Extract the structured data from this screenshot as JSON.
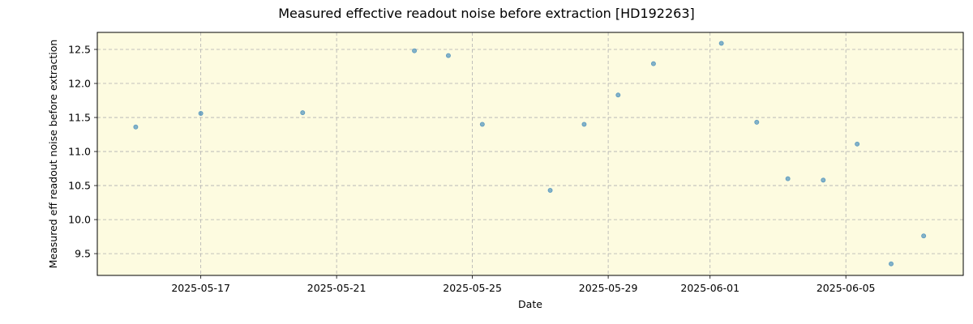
{
  "chart_data": {
    "type": "scatter",
    "title": "Measured effective readout noise before extraction [HD192263]",
    "xlabel": "Date",
    "ylabel": "Measured eff readout noise before extraction",
    "x_type": "date",
    "xlim": [
      "2025-05-13T22:50",
      "2025-06-08T11:00"
    ],
    "ylim": [
      9.18,
      12.75
    ],
    "x_ticks": [
      "2025-05-17",
      "2025-05-21",
      "2025-05-25",
      "2025-05-29",
      "2025-06-01",
      "2025-06-05"
    ],
    "y_ticks": [
      9.5,
      10.0,
      10.5,
      11.0,
      11.5,
      12.0,
      12.5
    ],
    "y_tick_labels": [
      "9.5",
      "10.0",
      "10.5",
      "11.0",
      "11.5",
      "12.0",
      "12.5"
    ],
    "grid": true,
    "colors": {
      "plot_background": "#fdfbe0",
      "marker": "#1f77b4"
    },
    "series": [
      {
        "points": [
          {
            "x": "2025-05-15T02:00",
            "y": 11.36
          },
          {
            "x": "2025-05-17T00:00",
            "y": 11.56
          },
          {
            "x": "2025-05-20T00:00",
            "y": 11.57
          },
          {
            "x": "2025-05-23T07:00",
            "y": 12.48
          },
          {
            "x": "2025-05-24T07:00",
            "y": 12.41
          },
          {
            "x": "2025-05-25T07:00",
            "y": 11.4
          },
          {
            "x": "2025-05-27T07:00",
            "y": 10.43
          },
          {
            "x": "2025-05-28T07:00",
            "y": 11.4
          },
          {
            "x": "2025-05-29T07:00",
            "y": 11.83
          },
          {
            "x": "2025-05-30T08:00",
            "y": 12.29
          },
          {
            "x": "2025-06-01T08:00",
            "y": 12.59
          },
          {
            "x": "2025-06-02T09:00",
            "y": 11.43
          },
          {
            "x": "2025-06-03T07:00",
            "y": 10.6
          },
          {
            "x": "2025-06-04T08:00",
            "y": 10.58
          },
          {
            "x": "2025-06-05T08:00",
            "y": 11.11
          },
          {
            "x": "2025-06-06T08:00",
            "y": 9.35
          },
          {
            "x": "2025-06-07T07:00",
            "y": 9.76
          }
        ]
      }
    ]
  }
}
